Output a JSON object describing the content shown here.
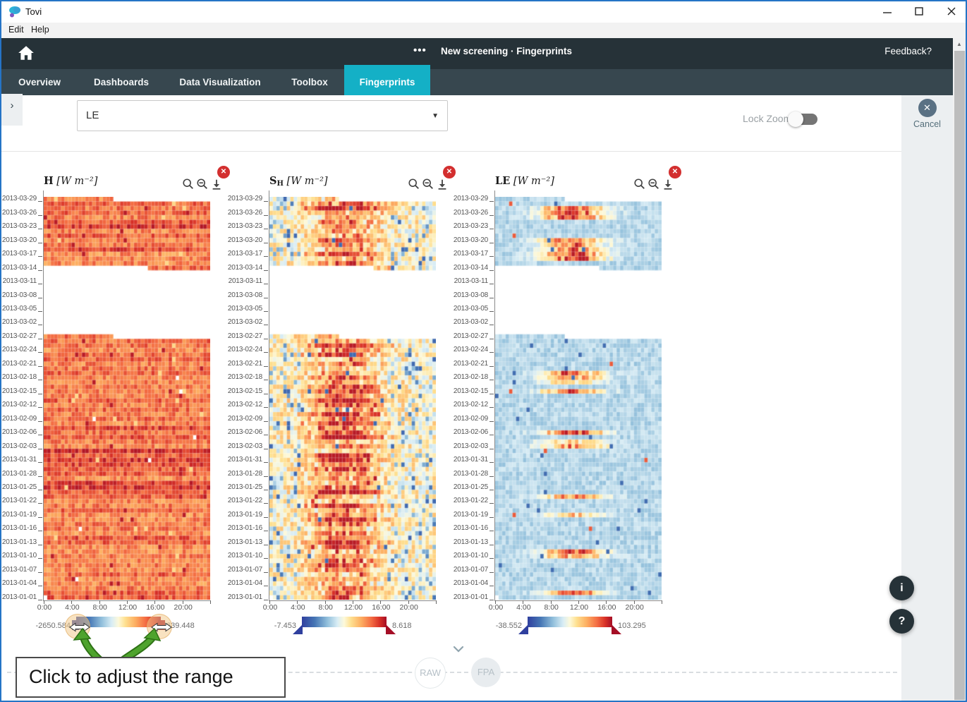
{
  "window": {
    "app_title": "Tovi",
    "menu_items": [
      "Edit",
      "Help"
    ]
  },
  "navbar": {
    "overflow_dots": "•••",
    "breadcrumb": "New screening · Fingerprints",
    "feedback_link": "Feedback?"
  },
  "tabs": [
    {
      "label": "Overview",
      "active": false
    },
    {
      "label": "Dashboards",
      "active": false
    },
    {
      "label": "Data Visualization",
      "active": false
    },
    {
      "label": "Toolbox",
      "active": false
    },
    {
      "label": "Fingerprints",
      "active": true
    }
  ],
  "filter": {
    "variable_dropdown_value": "LE",
    "lock_zoom_label": "Lock Zoom",
    "lock_zoom_enabled": false
  },
  "cancel_button": {
    "label": "Cancel"
  },
  "annotation": {
    "text": "Click to adjust the range"
  },
  "bottom_flow": {
    "nodes": [
      "RAW",
      "FPA"
    ]
  },
  "floating_buttons": [
    {
      "name": "info",
      "glyph": "i"
    },
    {
      "name": "help",
      "glyph": "?"
    }
  ],
  "colors": {
    "header_bg": "#263238",
    "tabbar_bg": "#37474f",
    "active_tab_bg": "#14b0c6",
    "panel_bg": "#eceff1",
    "close_badge_red": "#d32f2f",
    "annotation_arrow_green": "#4ea32d",
    "window_border_blue": "#2574c6"
  },
  "chart_data": {
    "type": "heatmap",
    "description": "Three half-hourly flux fingerprint heatmaps (time of day on x, date on y, newest date on top)",
    "x_ticks": [
      "0:00",
      "4:00",
      "8:00",
      "12:00",
      "16:00",
      "20:00"
    ],
    "x_tick_cols": [
      0,
      8,
      16,
      24,
      32,
      40
    ],
    "columns_per_day": 48,
    "rows_total": 88,
    "date_top": "2013-03-29",
    "date_bottom": "2013-01-01",
    "y_tick_row_step": 3,
    "y_ticks": [
      "2013-03-29",
      "2013-03-26",
      "2013-03-23",
      "2013-03-20",
      "2013-03-17",
      "2013-03-14",
      "2013-03-11",
      "2013-03-08",
      "2013-03-05",
      "2013-03-02",
      "2013-02-27",
      "2013-02-24",
      "2013-02-21",
      "2013-02-18",
      "2013-02-15",
      "2013-02-12",
      "2013-02-09",
      "2013-02-06",
      "2013-02-03",
      "2013-01-31",
      "2013-01-28",
      "2013-01-25",
      "2013-01-22",
      "2013-01-19",
      "2013-01-16",
      "2013-01-13",
      "2013-01-10",
      "2013-01-07",
      "2013-01-04",
      "2013-01-01"
    ],
    "data_gap": {
      "from_date": "2013-03-13",
      "to_date": "2013-02-28",
      "row_start": 16,
      "row_end": 29
    },
    "partial_rows": [
      {
        "date": "2013-03-29",
        "row": 0,
        "cols_present": "0-19"
      },
      {
        "date": "2013-03-14",
        "row": 15,
        "cols_present": "30-47"
      },
      {
        "date": "2013-02-27",
        "row": 30,
        "cols_present": "0-19"
      },
      {
        "date": "2013-01-01",
        "row": 87,
        "cols_present": "1-47"
      }
    ],
    "colormap_stops": [
      "#30409f",
      "#4575b4",
      "#91bfdb",
      "#d9edf5",
      "#fdf9da",
      "#fee090",
      "#fdae61",
      "#f46d43",
      "#d73027",
      "#a50e26"
    ],
    "colormap_positions": [
      0,
      0.15,
      0.3,
      0.42,
      0.5,
      0.58,
      0.7,
      0.82,
      0.92,
      1.0
    ],
    "toolbar_icons": [
      "zoom-in",
      "zoom-out",
      "download",
      "close"
    ],
    "plots": [
      {
        "symbol": "H",
        "subscript": "",
        "units": "[W m⁻²]",
        "scale_min": "-2650.584",
        "scale_max": "639.448",
        "pattern": "warm",
        "seed": 7,
        "handle_style": "square-highlighted"
      },
      {
        "symbol": "S",
        "subscript": "H",
        "units": "[W m⁻²]",
        "scale_min": "-7.453",
        "scale_max": "8.618",
        "pattern": "diverging",
        "seed": 13,
        "handle_style": "triangle"
      },
      {
        "symbol": "LE",
        "subscript": "",
        "units": "[W m⁻²]",
        "scale_min": "-38.552",
        "scale_max": "103.295",
        "pattern": "cool",
        "seed": 23,
        "handle_style": "triangle"
      }
    ]
  }
}
